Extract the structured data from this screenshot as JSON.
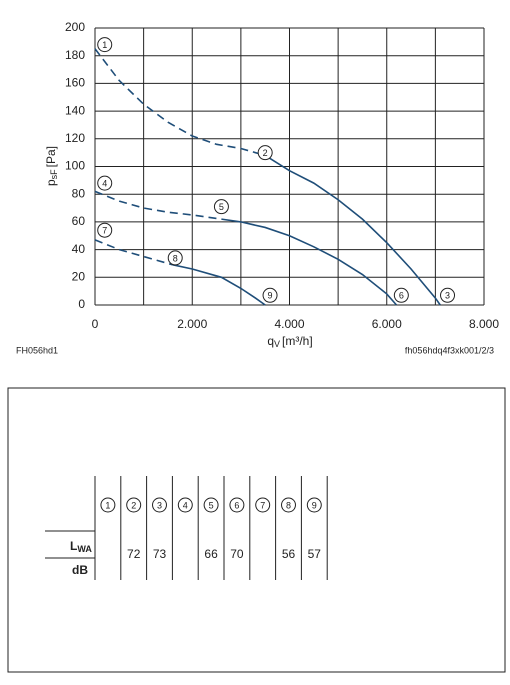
{
  "chart_data": {
    "type": "line",
    "x_label": "q",
    "x_label_sub": "V",
    "x_label_unit": "[m³/h]",
    "y_label": "p",
    "y_label_sub": "sF",
    "y_label_unit": "[Pa]",
    "xlim": [
      0,
      8000
    ],
    "ylim": [
      0,
      200
    ],
    "xticks": [
      0,
      {
        "value": 2000,
        "label": "2.000"
      },
      {
        "value": 4000,
        "label": "4.000"
      },
      {
        "value": 6000,
        "label": "6.000"
      },
      {
        "value": 8000,
        "label": "8.000"
      }
    ],
    "x_minor_grid": [
      1000,
      3000,
      5000,
      7000
    ],
    "yticks": [
      0,
      20,
      40,
      60,
      80,
      100,
      120,
      140,
      160,
      180,
      200
    ],
    "grid": true,
    "series": [
      {
        "color": "#1f4e79",
        "style": "dashed",
        "x": [
          0,
          500,
          1000,
          1500,
          2000,
          2500,
          3000,
          3500
        ],
        "values": [
          185,
          162,
          145,
          132,
          122,
          116,
          113,
          108
        ]
      },
      {
        "color": "#1f4e79",
        "style": "solid",
        "x": [
          3500,
          4000,
          4500,
          5000,
          5500,
          6000,
          6500,
          7000,
          7100
        ],
        "values": [
          108,
          97,
          88,
          76,
          62,
          45,
          26,
          5,
          0
        ]
      },
      {
        "color": "#1f4e79",
        "style": "dashed",
        "x": [
          0,
          500,
          1000,
          1500,
          2000,
          2600
        ],
        "values": [
          82,
          75,
          70,
          67,
          65,
          62
        ]
      },
      {
        "color": "#1f4e79",
        "style": "solid",
        "x": [
          2600,
          3000,
          3500,
          4000,
          4500,
          5000,
          5500,
          6000,
          6200
        ],
        "values": [
          62,
          60,
          56,
          50,
          42,
          33,
          22,
          8,
          0
        ]
      },
      {
        "color": "#1f4e79",
        "style": "dashed",
        "x": [
          0,
          500,
          1000,
          1600
        ],
        "values": [
          47,
          40,
          35,
          29
        ]
      },
      {
        "color": "#1f4e79",
        "style": "solid",
        "x": [
          1600,
          2000,
          2600,
          3000,
          3300,
          3500
        ],
        "values": [
          29,
          26,
          20,
          12,
          5,
          0
        ]
      }
    ],
    "markers": [
      {
        "label": "1",
        "x": 200,
        "y": 188
      },
      {
        "label": "2",
        "x": 3500,
        "y": 110
      },
      {
        "label": "3",
        "x": 7250,
        "y": 7
      },
      {
        "label": "4",
        "x": 200,
        "y": 88
      },
      {
        "label": "5",
        "x": 2600,
        "y": 71
      },
      {
        "label": "6",
        "x": 6300,
        "y": 7
      },
      {
        "label": "7",
        "x": 200,
        "y": 54
      },
      {
        "label": "8",
        "x": 1650,
        "y": 34
      },
      {
        "label": "9",
        "x": 3600,
        "y": 7
      }
    ],
    "footer_left": "FH056hd1",
    "footer_right": "fh056hdq4f3xk001/2/3"
  },
  "table": {
    "columns": [
      "1",
      "2",
      "3",
      "4",
      "5",
      "6",
      "7",
      "8",
      "9"
    ],
    "row_label": "L",
    "row_label_sub": "WA",
    "row_unit": "dB",
    "values": [
      null,
      72,
      73,
      null,
      66,
      70,
      null,
      56,
      57
    ]
  }
}
